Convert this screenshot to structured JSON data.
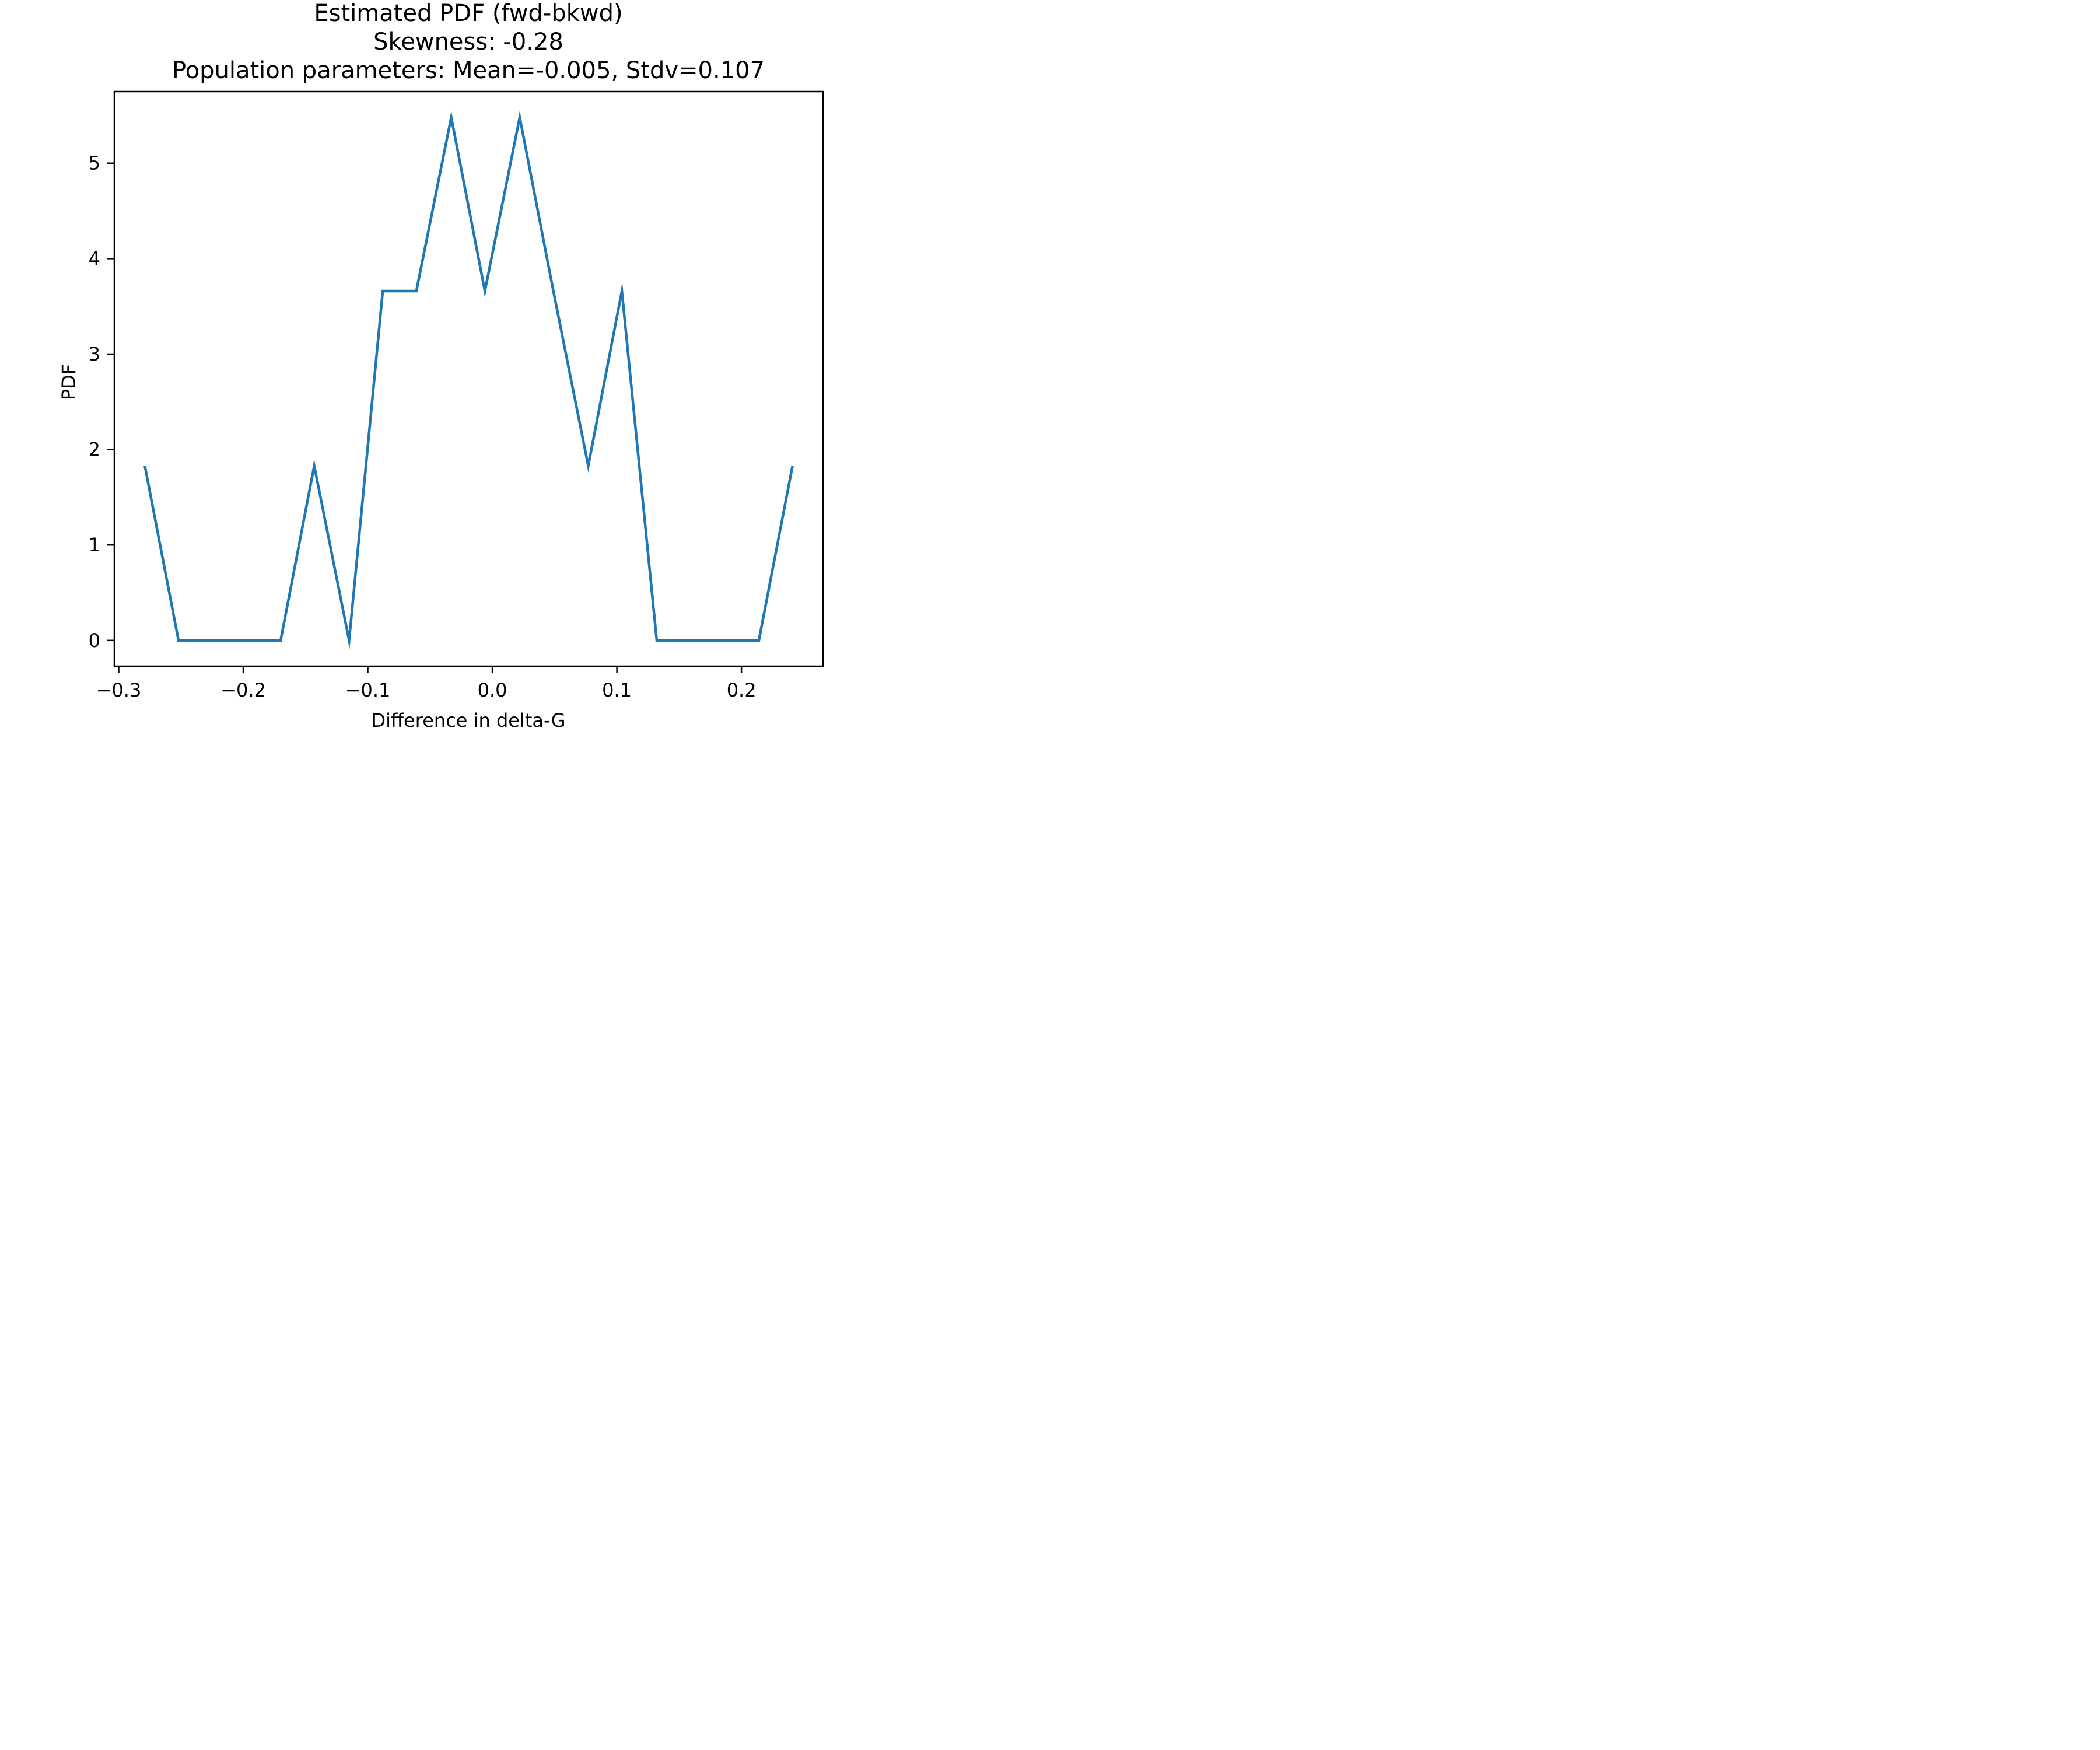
{
  "chart_data": {
    "type": "line",
    "title_lines": [
      "Estimated PDF (fwd-bkwd)",
      "Skewness: -0.28",
      "Population parameters: Mean=-0.005, Stdv=0.107"
    ],
    "xlabel": "Difference in delta-G",
    "ylabel": "PDF",
    "xlim": [
      -0.3035,
      0.2655
    ],
    "ylim": [
      -0.27,
      5.75
    ],
    "xticks": [
      -0.3,
      -0.2,
      -0.1,
      0.0,
      0.1,
      0.2
    ],
    "xtick_labels": [
      "−0.3",
      "−0.2",
      "−0.1",
      "0.0",
      "0.1",
      "0.2"
    ],
    "yticks": [
      0,
      1,
      2,
      3,
      4,
      5
    ],
    "ytick_labels": [
      "0",
      "1",
      "2",
      "3",
      "4",
      "5"
    ],
    "grid": false,
    "color": "#1f77b4",
    "series": [
      {
        "x": [
          -0.279,
          -0.252,
          -0.225,
          -0.198,
          -0.17,
          -0.143,
          -0.115,
          -0.088,
          -0.061,
          -0.033,
          -0.006,
          0.022,
          0.049,
          0.077,
          0.104,
          0.132,
          0.159,
          0.186,
          0.214,
          0.241
        ],
        "y": [
          1.83,
          0,
          0,
          0,
          0,
          1.83,
          0,
          3.66,
          3.66,
          5.48,
          3.66,
          5.48,
          3.66,
          1.83,
          3.66,
          0,
          0,
          0,
          0,
          1.83
        ]
      }
    ]
  }
}
